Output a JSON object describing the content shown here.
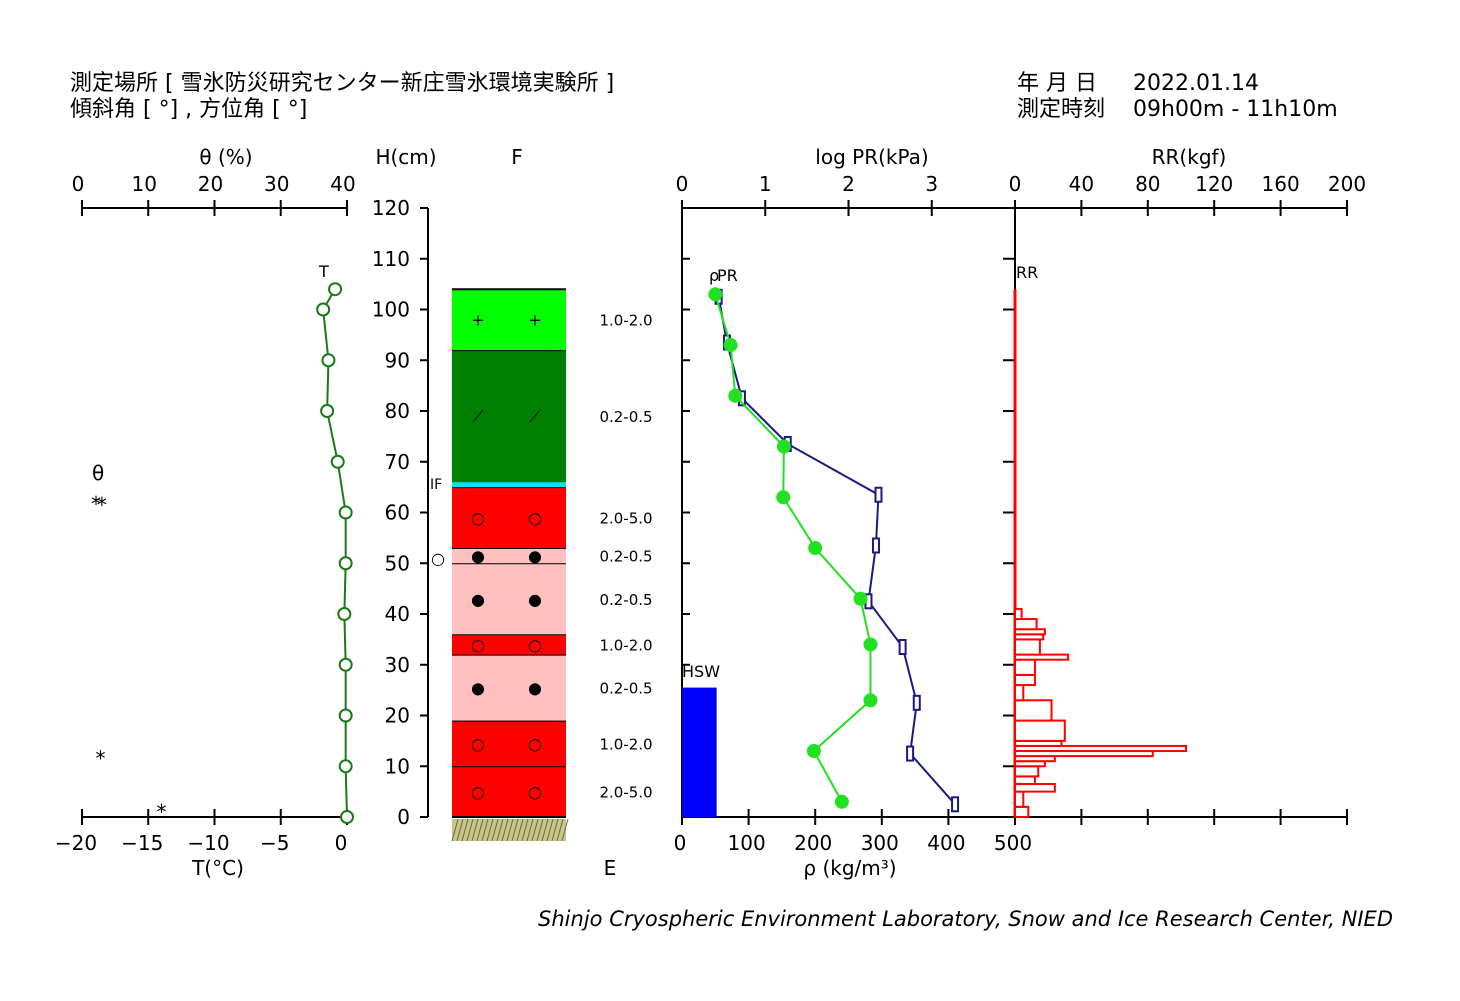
{
  "header": {
    "site_line": "測定場所 [ 雪氷防災研究センター新庄雪氷環境実験所 ]",
    "slope_line": "傾斜角 [ °] , 方位角 [ °]",
    "date_label": "年 月 日",
    "date_value": "2022.01.14",
    "time_label": "測定時刻",
    "time_value": "09h00m - 11h10m"
  },
  "footer": {
    "credit": "Shinjo Cryospheric Environment Laboratory, Snow and Ice Research Center, NIED"
  },
  "colors": {
    "temperature": "#1a7a1a",
    "density": "#22e022",
    "pr": "#1a1a80",
    "rr": "#ff0000",
    "hsw": "#0000ff",
    "ice_film": "#00e5ee"
  },
  "chart_data": [
    {
      "type": "line",
      "name": "temperature",
      "title_top": "θ (%)",
      "top_ticks": [
        "0",
        "10",
        "20",
        "30",
        "40"
      ],
      "xlabel": "T(°C)",
      "bottom_ticks": [
        "−20",
        "−15",
        "−10",
        "−5",
        "0"
      ],
      "xlim": [
        -20,
        0
      ],
      "series_label": "T",
      "height_cm": [
        104,
        100,
        90,
        80,
        70,
        60,
        50,
        40,
        30,
        20,
        10,
        0
      ],
      "temp_c": [
        -0.9,
        -1.8,
        -1.4,
        -1.5,
        -0.7,
        -0.1,
        -0.1,
        -0.2,
        -0.1,
        -0.1,
        -0.1,
        0.0
      ],
      "theta_label": "θ",
      "theta_marker": "*",
      "star_markers": [
        {
          "height_cm": 62.5,
          "temp_c": -18.5
        },
        {
          "height_cm": 12.5,
          "temp_c": -18.6
        },
        {
          "height_cm": 2.0,
          "temp_c": -14.0
        }
      ]
    },
    {
      "type": "table",
      "name": "snow-layers",
      "ylabel": "H(cm)",
      "col_f": "F",
      "col_e": "E",
      "y_ticks": [
        "0",
        "10",
        "20",
        "30",
        "40",
        "50",
        "60",
        "70",
        "80",
        "90",
        "100",
        "110",
        "120"
      ],
      "ylim": [
        0,
        120
      ],
      "snow_depth_cm": 104,
      "layers": [
        {
          "bottom": 0,
          "top": 10,
          "color": "#ff0000",
          "symbol": "○",
          "grain": "2.0-5.0"
        },
        {
          "bottom": 10,
          "top": 19,
          "color": "#ff0000",
          "symbol": "○",
          "grain": "1.0-2.0"
        },
        {
          "bottom": 19,
          "top": 32,
          "color": "#ffc0c0",
          "symbol": "●",
          "grain": "0.2-0.5"
        },
        {
          "bottom": 32,
          "top": 36,
          "color": "#ff0000",
          "symbol": "○",
          "grain": "1.0-2.0"
        },
        {
          "bottom": 36,
          "top": 50,
          "color": "#ffc0c0",
          "symbol": "●",
          "grain": "0.2-0.5"
        },
        {
          "bottom": 50,
          "top": 53,
          "color": "#ffc0c0",
          "symbol": "●",
          "grain": "0.2-0.5"
        },
        {
          "bottom": 53,
          "top": 65,
          "color": "#ff0000",
          "symbol": "○",
          "grain": "2.0-5.0"
        },
        {
          "bottom": 65,
          "top": 66,
          "color": "#00e5ee",
          "symbol": "",
          "grain": ""
        },
        {
          "bottom": 66,
          "top": 92,
          "color": "#008000",
          "symbol": "⟋",
          "grain": "0.2-0.5"
        },
        {
          "bottom": 92,
          "top": 104,
          "color": "#00ff00",
          "symbol": "+",
          "grain": "1.0-2.0"
        }
      ],
      "if_label": "IF",
      "if_height_cm": 65.5,
      "wetness_marker": "○",
      "wetness_height_cm": 51
    },
    {
      "type": "line",
      "name": "density-pr",
      "top_title": "log PR(kPa)",
      "top_ticks": [
        "0",
        "1",
        "2",
        "3"
      ],
      "pr_xlim": [
        0,
        4
      ],
      "xlabel": "ρ (kg/m³)",
      "bottom_ticks": [
        "0",
        "100",
        "200",
        "300",
        "400",
        "500"
      ],
      "density_xlim": [
        0,
        500
      ],
      "rho_label": "ρ",
      "pr_label": "PR",
      "hsw_label": "HSW",
      "hsw_height_cm": 25.5,
      "hsw_width_kgm3": 52,
      "density": {
        "height_cm": [
          103,
          93,
          83,
          73,
          63,
          53,
          43,
          34,
          23,
          13,
          3
        ],
        "rho": [
          50,
          73,
          80,
          153,
          152,
          200,
          268,
          283,
          283,
          198,
          240
        ]
      },
      "pr": {
        "height_cm": [
          102.5,
          93.5,
          82.5,
          73.5,
          63.5,
          53.5,
          42.5,
          33.5,
          22.5,
          12.5,
          2.5
        ],
        "log_pr": [
          0.44,
          0.54,
          0.72,
          1.27,
          2.36,
          2.33,
          2.24,
          2.65,
          2.82,
          2.74,
          3.28
        ]
      }
    },
    {
      "type": "bar",
      "name": "ram-resistance",
      "title": "RR(kgf)",
      "series_label": "RR",
      "top_ticks": [
        "0",
        "40",
        "80",
        "120",
        "160",
        "200"
      ],
      "xlim": [
        0,
        200
      ],
      "bars": [
        {
          "bottom": 0,
          "top": 2,
          "value": 8
        },
        {
          "bottom": 2,
          "top": 5,
          "value": 5
        },
        {
          "bottom": 5,
          "top": 6.5,
          "value": 24
        },
        {
          "bottom": 6.5,
          "top": 8,
          "value": 12
        },
        {
          "bottom": 8,
          "top": 10,
          "value": 14
        },
        {
          "bottom": 10,
          "top": 11,
          "value": 18
        },
        {
          "bottom": 11,
          "top": 12,
          "value": 24
        },
        {
          "bottom": 12,
          "top": 13,
          "value": 83
        },
        {
          "bottom": 13,
          "top": 14,
          "value": 103
        },
        {
          "bottom": 14,
          "top": 15,
          "value": 28
        },
        {
          "bottom": 15,
          "top": 19,
          "value": 30
        },
        {
          "bottom": 19,
          "top": 23,
          "value": 22
        },
        {
          "bottom": 23,
          "top": 26,
          "value": 5
        },
        {
          "bottom": 26,
          "top": 28,
          "value": 12
        },
        {
          "bottom": 28,
          "top": 31,
          "value": 12
        },
        {
          "bottom": 31,
          "top": 32,
          "value": 32
        },
        {
          "bottom": 32,
          "top": 35,
          "value": 15
        },
        {
          "bottom": 35,
          "top": 36,
          "value": 17
        },
        {
          "bottom": 36,
          "top": 37,
          "value": 18
        },
        {
          "bottom": 37,
          "top": 39,
          "value": 13
        },
        {
          "bottom": 39,
          "top": 41,
          "value": 4
        }
      ]
    }
  ]
}
